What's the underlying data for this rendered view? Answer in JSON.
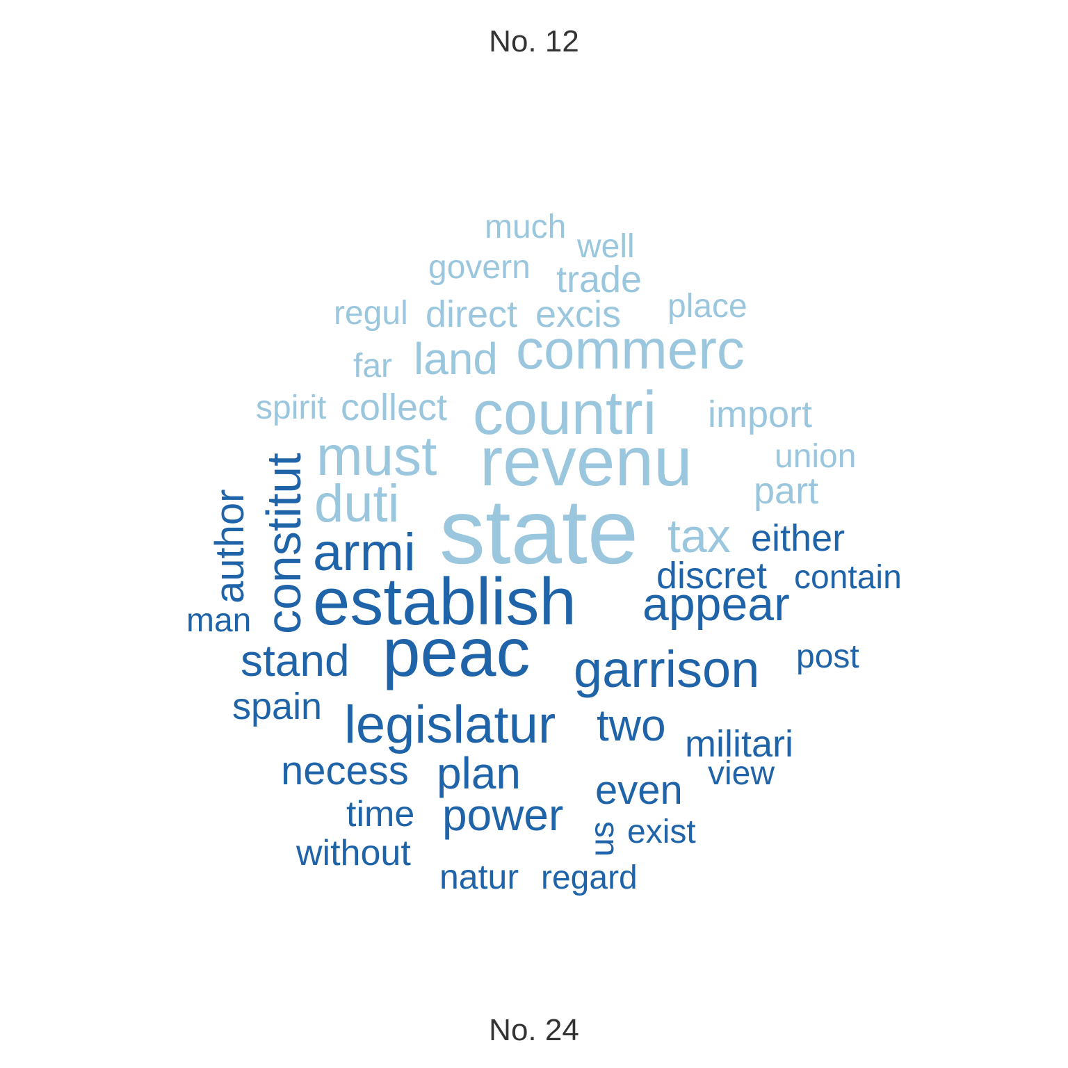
{
  "chart_data": {
    "type": "wordcloud",
    "comparison": {
      "top_label": "No. 12",
      "bottom_label": "No. 24"
    },
    "colors": {
      "No. 12": "#9ac6de",
      "No. 24": "#1f63a8"
    },
    "words": [
      {
        "text": "state",
        "group": "No. 12"
      },
      {
        "text": "revenu",
        "group": "No. 12"
      },
      {
        "text": "countri",
        "group": "No. 12"
      },
      {
        "text": "must",
        "group": "No. 12"
      },
      {
        "text": "commerc",
        "group": "No. 12"
      },
      {
        "text": "duti",
        "group": "No. 12"
      },
      {
        "text": "tax",
        "group": "No. 12"
      },
      {
        "text": "land",
        "group": "No. 12"
      },
      {
        "text": "import",
        "group": "No. 12"
      },
      {
        "text": "collect",
        "group": "No. 12"
      },
      {
        "text": "excis",
        "group": "No. 12"
      },
      {
        "text": "direct",
        "group": "No. 12"
      },
      {
        "text": "trade",
        "group": "No. 12"
      },
      {
        "text": "part",
        "group": "No. 12"
      },
      {
        "text": "govern",
        "group": "No. 12"
      },
      {
        "text": "place",
        "group": "No. 12"
      },
      {
        "text": "union",
        "group": "No. 12"
      },
      {
        "text": "far",
        "group": "No. 12"
      },
      {
        "text": "regul",
        "group": "No. 12"
      },
      {
        "text": "spirit",
        "group": "No. 12"
      },
      {
        "text": "much",
        "group": "No. 12"
      },
      {
        "text": "well",
        "group": "No. 12"
      },
      {
        "text": "establish",
        "group": "No. 24"
      },
      {
        "text": "peac",
        "group": "No. 24"
      },
      {
        "text": "armi",
        "group": "No. 24"
      },
      {
        "text": "legislatur",
        "group": "No. 24"
      },
      {
        "text": "garrison",
        "group": "No. 24"
      },
      {
        "text": "constitut",
        "group": "No. 24"
      },
      {
        "text": "appear",
        "group": "No. 24"
      },
      {
        "text": "stand",
        "group": "No. 24"
      },
      {
        "text": "two",
        "group": "No. 24"
      },
      {
        "text": "plan",
        "group": "No. 24"
      },
      {
        "text": "power",
        "group": "No. 24"
      },
      {
        "text": "author",
        "group": "No. 24"
      },
      {
        "text": "necess",
        "group": "No. 24"
      },
      {
        "text": "militari",
        "group": "No. 24"
      },
      {
        "text": "even",
        "group": "No. 24"
      },
      {
        "text": "discret",
        "group": "No. 24"
      },
      {
        "text": "either",
        "group": "No. 24"
      },
      {
        "text": "spain",
        "group": "No. 24"
      },
      {
        "text": "without",
        "group": "No. 24"
      },
      {
        "text": "time",
        "group": "No. 24"
      },
      {
        "text": "natur",
        "group": "No. 24"
      },
      {
        "text": "contain",
        "group": "No. 24"
      },
      {
        "text": "post",
        "group": "No. 24"
      },
      {
        "text": "regard",
        "group": "No. 24"
      },
      {
        "text": "exist",
        "group": "No. 24"
      },
      {
        "text": "man",
        "group": "No. 24"
      },
      {
        "text": "view",
        "group": "No. 24"
      },
      {
        "text": "us",
        "group": "No. 24"
      }
    ]
  }
}
